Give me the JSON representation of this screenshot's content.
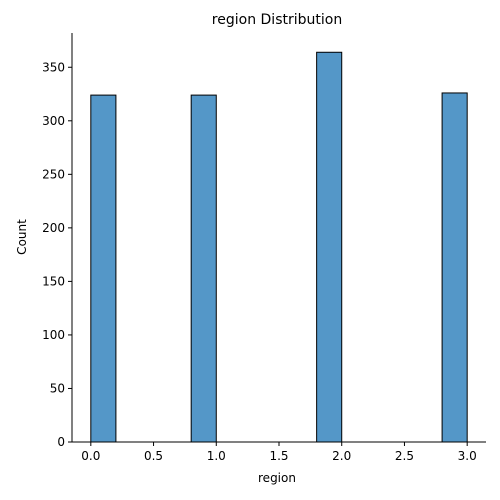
{
  "chart_data": {
    "type": "bar",
    "title": "region Distribution",
    "xlabel": "region",
    "ylabel": "Count",
    "xlim": [
      -0.15,
      3.15
    ],
    "ylim": [
      0,
      382
    ],
    "x_ticks": [
      0.0,
      0.5,
      1.0,
      1.5,
      2.0,
      2.5,
      3.0
    ],
    "x_tick_labels": [
      "0.0",
      "0.5",
      "1.0",
      "1.5",
      "2.0",
      "2.5",
      "3.0"
    ],
    "y_ticks": [
      0,
      50,
      100,
      150,
      200,
      250,
      300,
      350
    ],
    "y_tick_labels": [
      "0",
      "50",
      "100",
      "150",
      "200",
      "250",
      "300",
      "350"
    ],
    "bin_width": 0.2,
    "bars": [
      {
        "x_start": 0.0,
        "x_end": 0.2,
        "value": 324
      },
      {
        "x_start": 0.8,
        "x_end": 1.0,
        "value": 324
      },
      {
        "x_start": 1.8,
        "x_end": 2.0,
        "value": 364
      },
      {
        "x_start": 2.8,
        "x_end": 3.0,
        "value": 326
      }
    ],
    "bar_color": "#5497c8",
    "bar_edge_color": "#000000",
    "grid": false,
    "legend": "none"
  }
}
